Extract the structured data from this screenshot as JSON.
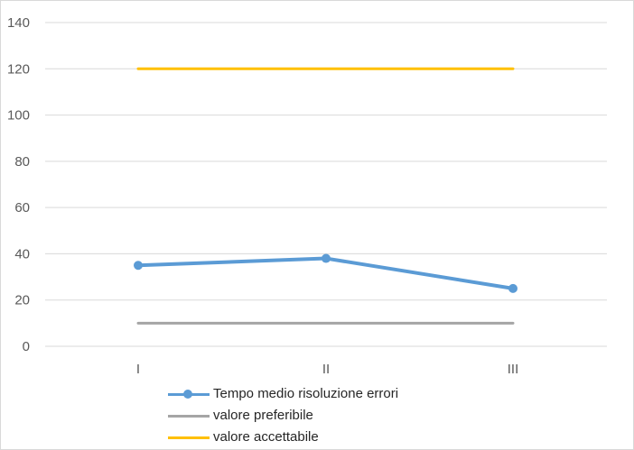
{
  "chart_data": {
    "type": "line",
    "categories": [
      "I",
      "II",
      "III"
    ],
    "ylim": [
      0,
      140
    ],
    "yticks": [
      0,
      20,
      40,
      60,
      80,
      100,
      120,
      140
    ],
    "grid": true,
    "legend_position": "bottom",
    "series": [
      {
        "name": "Tempo medio risoluzione errori",
        "values": [
          35,
          38,
          25
        ],
        "color": "#5b9bd5",
        "markers": true
      },
      {
        "name": "valore preferibile",
        "values": [
          10,
          10,
          10
        ],
        "color": "#a5a5a5",
        "markers": false
      },
      {
        "name": "valore accettabile",
        "values": [
          120,
          120,
          120
        ],
        "color": "#ffc000",
        "markers": false
      }
    ]
  }
}
